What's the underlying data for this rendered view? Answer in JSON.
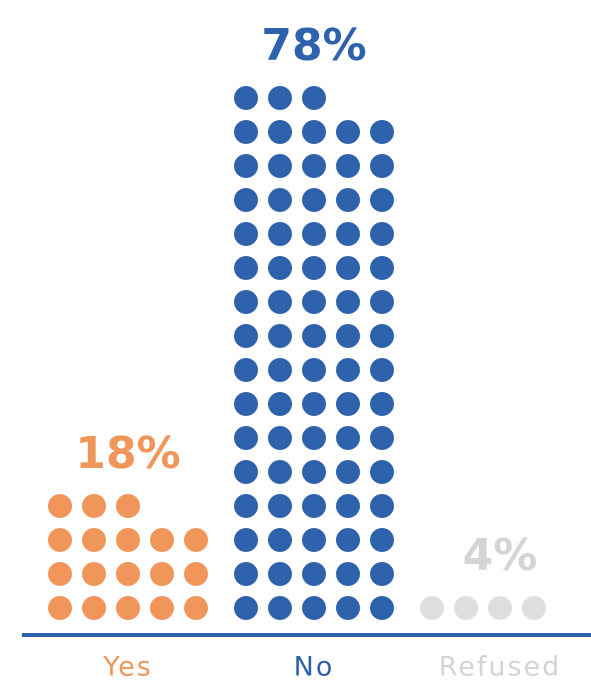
{
  "chart_data": {
    "type": "dot-column",
    "categories": [
      "Yes",
      "No",
      "Refused"
    ],
    "values": [
      18,
      78,
      4
    ],
    "value_labels": [
      "18%",
      "78%",
      "4%"
    ],
    "colors": [
      "#f0965a",
      "#2f62ad",
      "#dedede"
    ],
    "label_colors": [
      "#f0965a",
      "#2f62ad",
      "#d4d4d4"
    ],
    "axis_color": "#2f62ad"
  }
}
